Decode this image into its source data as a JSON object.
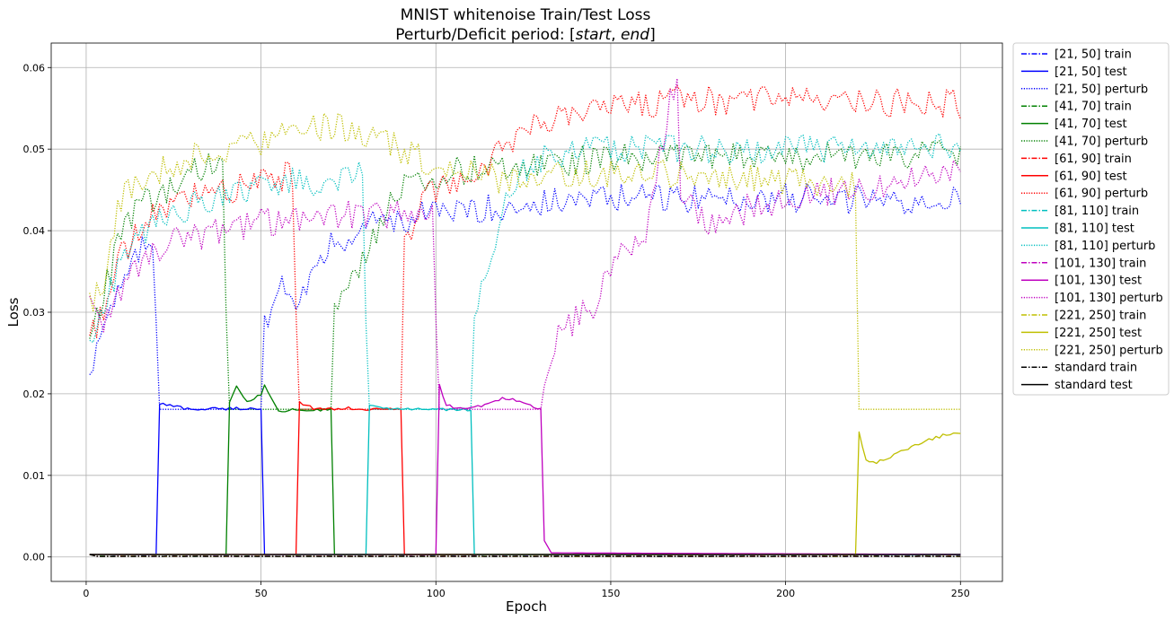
{
  "chart_data": {
    "type": "line",
    "title_line1": "MNIST whitenoise Train/Test Loss",
    "title_line2_prefix": "Perturb/Deficit period: [",
    "title_line2_start": "start",
    "title_line2_sep": ", ",
    "title_line2_end": "end",
    "title_line2_suffix": "]",
    "xlabel": "Epoch",
    "ylabel": "Loss",
    "xlim": [
      -10,
      262
    ],
    "ylim": [
      -0.003,
      0.063
    ],
    "xticks": [
      0,
      50,
      100,
      150,
      200,
      250
    ],
    "xtick_labels": [
      "0",
      "50",
      "100",
      "150",
      "200",
      "250"
    ],
    "yticks": [
      0.0,
      0.01,
      0.02,
      0.03,
      0.04,
      0.05,
      0.06
    ],
    "ytick_labels": [
      "0.00",
      "0.01",
      "0.02",
      "0.03",
      "0.04",
      "0.05",
      "0.06"
    ],
    "grid": true,
    "legend_position": "outside-right",
    "series": [
      {
        "name": "[21, 50] train",
        "color": "#0000ff",
        "style": "dashdot",
        "kind": "train",
        "start": 21,
        "end": 50
      },
      {
        "name": "[21, 50] test",
        "color": "#0000ff",
        "style": "solid",
        "kind": "test",
        "start": 21,
        "end": 50,
        "segments": [
          [
            1,
            0.0003
          ],
          [
            20,
            0.0003
          ],
          [
            21,
            0.0188
          ],
          [
            30,
            0.0181
          ],
          [
            40,
            0.0182
          ],
          [
            50,
            0.0182
          ],
          [
            51,
            0.0003
          ],
          [
            250,
            0.0003
          ]
        ]
      },
      {
        "name": "[21, 50] perturb",
        "color": "#0000ff",
        "style": "dotted",
        "kind": "perturb",
        "start": 21,
        "end": 50,
        "segments": [
          [
            1,
            0.023
          ],
          [
            5,
            0.029
          ],
          [
            10,
            0.033
          ],
          [
            15,
            0.037
          ],
          [
            19,
            0.039
          ],
          [
            20,
            0.03
          ],
          [
            21,
            0.018
          ],
          [
            50,
            0.018
          ],
          [
            51,
            0.028
          ],
          [
            55,
            0.034
          ],
          [
            60,
            0.032
          ],
          [
            70,
            0.038
          ],
          [
            80,
            0.041
          ],
          [
            100,
            0.042
          ],
          [
            120,
            0.043
          ],
          [
            150,
            0.044
          ],
          [
            200,
            0.044
          ],
          [
            250,
            0.0435
          ]
        ]
      },
      {
        "name": "[41, 70] train",
        "color": "#008000",
        "style": "dashdot",
        "kind": "train",
        "start": 41,
        "end": 70
      },
      {
        "name": "[41, 70] test",
        "color": "#008000",
        "style": "solid",
        "kind": "test",
        "start": 41,
        "end": 70,
        "segments": [
          [
            1,
            0.0003
          ],
          [
            40,
            0.0003
          ],
          [
            41,
            0.019
          ],
          [
            43,
            0.021
          ],
          [
            46,
            0.019
          ],
          [
            50,
            0.02
          ],
          [
            51,
            0.021
          ],
          [
            55,
            0.018
          ],
          [
            60,
            0.018
          ],
          [
            70,
            0.018
          ],
          [
            71,
            0.0003
          ],
          [
            250,
            0.0003
          ]
        ]
      },
      {
        "name": "[41, 70] perturb",
        "color": "#008000",
        "style": "dotted",
        "kind": "perturb",
        "start": 41,
        "end": 70,
        "segments": [
          [
            1,
            0.027
          ],
          [
            5,
            0.032
          ],
          [
            10,
            0.04
          ],
          [
            15,
            0.043
          ],
          [
            20,
            0.044
          ],
          [
            25,
            0.045
          ],
          [
            30,
            0.047
          ],
          [
            35,
            0.048
          ],
          [
            39,
            0.049
          ],
          [
            40,
            0.03
          ],
          [
            41,
            0.018
          ],
          [
            70,
            0.018
          ],
          [
            71,
            0.03
          ],
          [
            75,
            0.033
          ],
          [
            80,
            0.037
          ],
          [
            85,
            0.042
          ],
          [
            90,
            0.045
          ],
          [
            100,
            0.047
          ],
          [
            120,
            0.048
          ],
          [
            150,
            0.049
          ],
          [
            200,
            0.049
          ],
          [
            250,
            0.0495
          ]
        ]
      },
      {
        "name": "[61, 90] train",
        "color": "#ff0000",
        "style": "dashdot",
        "kind": "train",
        "start": 61,
        "end": 90
      },
      {
        "name": "[61, 90] test",
        "color": "#ff0000",
        "style": "solid",
        "kind": "test",
        "start": 61,
        "end": 90,
        "segments": [
          [
            1,
            0.0003
          ],
          [
            60,
            0.0003
          ],
          [
            61,
            0.019
          ],
          [
            65,
            0.0182
          ],
          [
            75,
            0.0182
          ],
          [
            90,
            0.0181
          ],
          [
            91,
            0.0003
          ],
          [
            250,
            0.0003
          ]
        ]
      },
      {
        "name": "[61, 90] perturb",
        "color": "#ff0000",
        "style": "dotted",
        "kind": "perturb",
        "start": 61,
        "end": 90,
        "segments": [
          [
            1,
            0.027
          ],
          [
            5,
            0.03
          ],
          [
            10,
            0.037
          ],
          [
            15,
            0.04
          ],
          [
            20,
            0.042
          ],
          [
            30,
            0.044
          ],
          [
            40,
            0.045
          ],
          [
            50,
            0.046
          ],
          [
            59,
            0.047
          ],
          [
            60,
            0.03
          ],
          [
            61,
            0.018
          ],
          [
            90,
            0.018
          ],
          [
            91,
            0.038
          ],
          [
            95,
            0.043
          ],
          [
            100,
            0.045
          ],
          [
            110,
            0.047
          ],
          [
            120,
            0.05
          ],
          [
            130,
            0.053
          ],
          [
            150,
            0.055
          ],
          [
            170,
            0.056
          ],
          [
            200,
            0.056
          ],
          [
            250,
            0.0555
          ]
        ]
      },
      {
        "name": "[81, 110] train",
        "color": "#00bfbf",
        "style": "dashdot",
        "kind": "train",
        "start": 81,
        "end": 110
      },
      {
        "name": "[81, 110] test",
        "color": "#00bfbf",
        "style": "solid",
        "kind": "test",
        "start": 81,
        "end": 110,
        "segments": [
          [
            1,
            0.0003
          ],
          [
            80,
            0.0003
          ],
          [
            81,
            0.0185
          ],
          [
            90,
            0.0182
          ],
          [
            100,
            0.0181
          ],
          [
            110,
            0.0181
          ],
          [
            111,
            0.0003
          ],
          [
            250,
            0.0003
          ]
        ]
      },
      {
        "name": "[81, 110] perturb",
        "color": "#00bfbf",
        "style": "dotted",
        "kind": "perturb",
        "start": 81,
        "end": 110,
        "segments": [
          [
            1,
            0.026
          ],
          [
            5,
            0.031
          ],
          [
            10,
            0.036
          ],
          [
            15,
            0.039
          ],
          [
            20,
            0.041
          ],
          [
            30,
            0.043
          ],
          [
            40,
            0.044
          ],
          [
            50,
            0.045
          ],
          [
            60,
            0.046
          ],
          [
            70,
            0.046
          ],
          [
            79,
            0.047
          ],
          [
            80,
            0.03
          ],
          [
            81,
            0.018
          ],
          [
            110,
            0.018
          ],
          [
            111,
            0.03
          ],
          [
            115,
            0.035
          ],
          [
            120,
            0.045
          ],
          [
            130,
            0.049
          ],
          [
            150,
            0.05
          ],
          [
            200,
            0.05
          ],
          [
            250,
            0.0505
          ]
        ]
      },
      {
        "name": "[101, 130] train",
        "color": "#bf00bf",
        "style": "dashdot",
        "kind": "train",
        "start": 101,
        "end": 130
      },
      {
        "name": "[101, 130] test",
        "color": "#bf00bf",
        "style": "solid",
        "kind": "test",
        "start": 101,
        "end": 130,
        "segments": [
          [
            1,
            0.0003
          ],
          [
            100,
            0.0003
          ],
          [
            101,
            0.021
          ],
          [
            103,
            0.0185
          ],
          [
            110,
            0.0182
          ],
          [
            120,
            0.0195
          ],
          [
            130,
            0.0181
          ],
          [
            131,
            0.002
          ],
          [
            133,
            0.0005
          ],
          [
            250,
            0.0003
          ]
        ]
      },
      {
        "name": "[101, 130] perturb",
        "color": "#bf00bf",
        "style": "dotted",
        "kind": "perturb",
        "start": 101,
        "end": 130,
        "segments": [
          [
            1,
            0.031
          ],
          [
            5,
            0.029
          ],
          [
            10,
            0.032
          ],
          [
            15,
            0.036
          ],
          [
            20,
            0.038
          ],
          [
            30,
            0.039
          ],
          [
            40,
            0.04
          ],
          [
            50,
            0.041
          ],
          [
            60,
            0.041
          ],
          [
            70,
            0.042
          ],
          [
            80,
            0.042
          ],
          [
            90,
            0.042
          ],
          [
            99,
            0.042
          ],
          [
            100,
            0.03
          ],
          [
            101,
            0.018
          ],
          [
            130,
            0.018
          ],
          [
            131,
            0.022
          ],
          [
            135,
            0.028
          ],
          [
            140,
            0.029
          ],
          [
            145,
            0.031
          ],
          [
            150,
            0.036
          ],
          [
            160,
            0.04
          ],
          [
            169,
            0.06
          ],
          [
            170,
            0.045
          ],
          [
            180,
            0.04
          ],
          [
            190,
            0.043
          ],
          [
            200,
            0.044
          ],
          [
            220,
            0.045
          ],
          [
            250,
            0.047
          ]
        ]
      },
      {
        "name": "[221, 250] train",
        "color": "#bfbf00",
        "style": "dashdot",
        "kind": "train",
        "start": 221,
        "end": 250
      },
      {
        "name": "[221, 250] test",
        "color": "#bfbf00",
        "style": "solid",
        "kind": "test",
        "start": 221,
        "end": 250,
        "segments": [
          [
            1,
            0.0003
          ],
          [
            220,
            0.0003
          ],
          [
            221,
            0.0155
          ],
          [
            223,
            0.0118
          ],
          [
            225,
            0.0115
          ],
          [
            230,
            0.0122
          ],
          [
            235,
            0.0133
          ],
          [
            240,
            0.0142
          ],
          [
            245,
            0.0149
          ],
          [
            250,
            0.0152
          ]
        ]
      },
      {
        "name": "[221, 250] perturb",
        "color": "#bfbf00",
        "style": "dotted",
        "kind": "perturb",
        "start": 221,
        "end": 250,
        "segments": [
          [
            1,
            0.031
          ],
          [
            5,
            0.034
          ],
          [
            10,
            0.044
          ],
          [
            15,
            0.046
          ],
          [
            20,
            0.047
          ],
          [
            25,
            0.048
          ],
          [
            30,
            0.049
          ],
          [
            40,
            0.05
          ],
          [
            50,
            0.051
          ],
          [
            60,
            0.052
          ],
          [
            70,
            0.053
          ],
          [
            80,
            0.052
          ],
          [
            90,
            0.05
          ],
          [
            100,
            0.048
          ],
          [
            110,
            0.047
          ],
          [
            120,
            0.046
          ],
          [
            140,
            0.047
          ],
          [
            160,
            0.047
          ],
          [
            180,
            0.047
          ],
          [
            200,
            0.046
          ],
          [
            219,
            0.046
          ],
          [
            220,
            0.044
          ],
          [
            221,
            0.022
          ],
          [
            225,
            0.0188
          ],
          [
            230,
            0.0183
          ],
          [
            250,
            0.0181
          ]
        ]
      },
      {
        "name": "standard train",
        "color": "#000000",
        "style": "dashdot",
        "kind": "train",
        "start": null,
        "end": null
      },
      {
        "name": "standard test",
        "color": "#000000",
        "style": "solid",
        "kind": "test",
        "start": null,
        "end": null,
        "segments": [
          [
            1,
            0.0003
          ],
          [
            250,
            0.0003
          ]
        ]
      }
    ]
  }
}
